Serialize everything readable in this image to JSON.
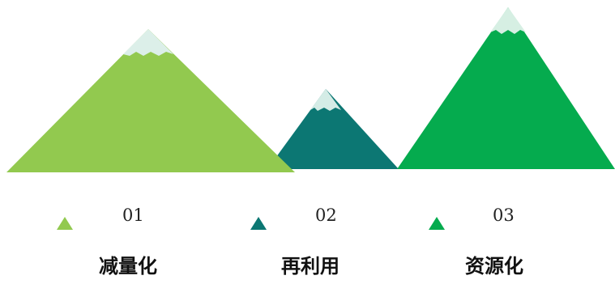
{
  "mountains": [
    {
      "number": "01",
      "label": "减量化",
      "color": "#92c94f",
      "snow_color": "#dcefe9"
    },
    {
      "number": "02",
      "label": "再利用",
      "color": "#0c7773",
      "snow_color": "#d4ece6"
    },
    {
      "number": "03",
      "label": "资源化",
      "color": "#05ab4e",
      "snow_color": "#d6efe3"
    }
  ]
}
